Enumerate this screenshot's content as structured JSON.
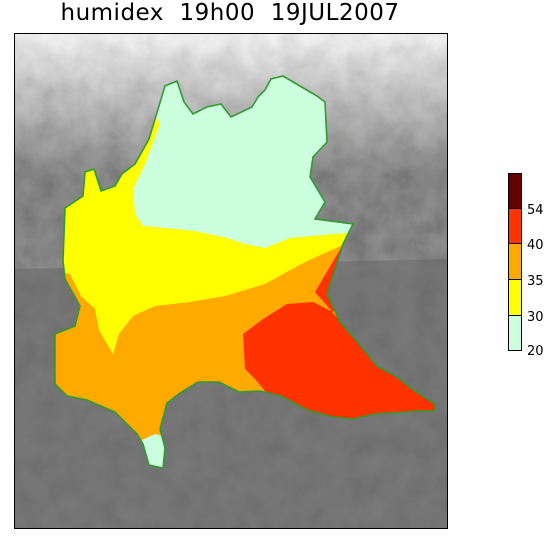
{
  "title": "humidex  19h00  19JUL2007",
  "legend": {
    "ticks": [
      "54",
      "40",
      "35",
      "30",
      "20"
    ],
    "colors": [
      "#660000",
      "#ff3300",
      "#ffaa00",
      "#ffff00",
      "#ccffdd"
    ]
  },
  "colors": {
    "band_20_30": "#ccffdd",
    "band_30_35": "#ffff00",
    "band_35_40": "#ffaa00",
    "band_40_54": "#ff3300",
    "band_54_plus": "#660000",
    "region_border": "#339933",
    "terrain_low": "#6a6a6a",
    "terrain_high": "#f0f0f0"
  }
}
